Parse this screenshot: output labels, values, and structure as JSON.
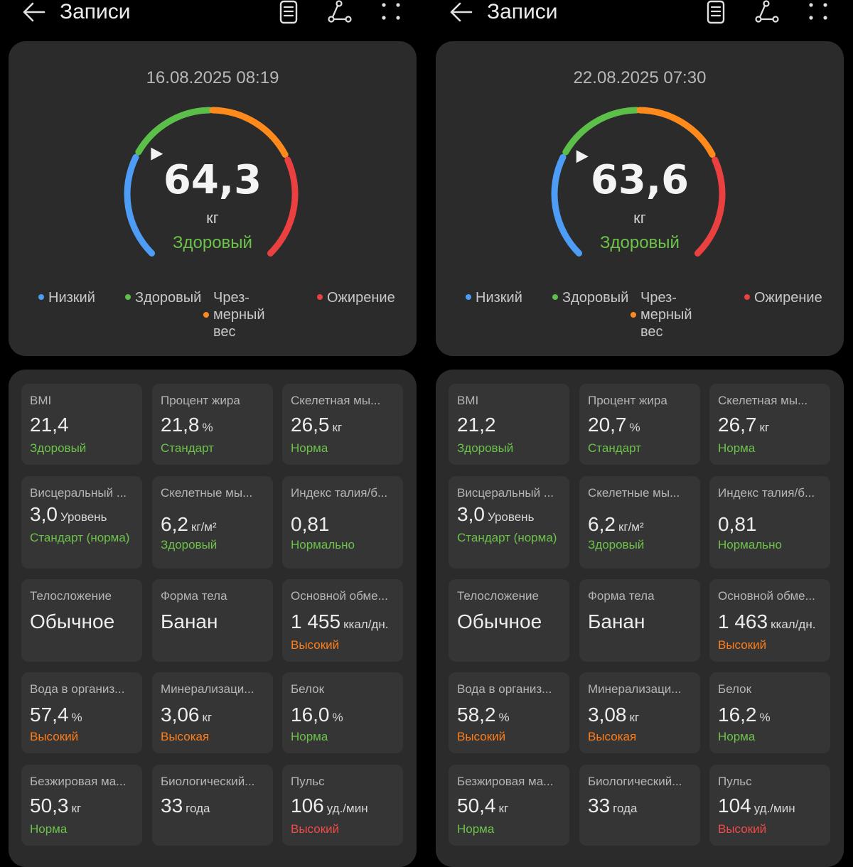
{
  "colors": {
    "low": "#4d9cf5",
    "healthy": "#5cbf4a",
    "overweight": "#ff8a1c",
    "obese": "#ea4040",
    "card_bg": "#2b2b2b",
    "tile_bg": "#353535"
  },
  "panels": [
    {
      "header": {
        "title": "Записи",
        "icons": [
          "back-arrow-icon",
          "notes-icon",
          "graph-icon",
          "more-icon"
        ]
      },
      "gauge": {
        "date": "16.08.2025 08:19",
        "value": "64,3",
        "unit": "кг",
        "status": "Здоровый",
        "marker_fraction": 0.3
      },
      "legend": {
        "low": "Низкий",
        "healthy": "Здоровый",
        "over_1": "Чрез-",
        "over_2": "мерный",
        "over_3": "вес",
        "obese": "Ожирение"
      },
      "metrics": [
        {
          "label": "BMI",
          "value": "21,4",
          "unit": "",
          "status": "Здоровый",
          "color": "green"
        },
        {
          "label": "Процент жира",
          "value": "21,8",
          "unit": "%",
          "status": "Стандарт",
          "color": "green"
        },
        {
          "label": "Скелетная мы...",
          "value": "26,5",
          "unit": "кг",
          "status": "Норма",
          "color": "green"
        },
        {
          "label": "Висцеральный ...",
          "value": "3,0",
          "unit": "Уровень",
          "status": "Стандарт (норма)",
          "color": "green"
        },
        {
          "label": "Скелетные мы...",
          "value": "6,2",
          "unit": "кг/м²",
          "status": "Здоровый",
          "color": "green"
        },
        {
          "label": "Индекс талия/б...",
          "value": "0,81",
          "unit": "",
          "status": "Нормально",
          "color": "green"
        },
        {
          "label": "Телосложение",
          "value": "Обычное",
          "unit": "",
          "status": "",
          "color": "green"
        },
        {
          "label": "Форма тела",
          "value": "Банан",
          "unit": "",
          "status": "",
          "color": "green"
        },
        {
          "label": "Основной обме...",
          "value": "1 455",
          "unit": "ккал/дн.",
          "status": "Высокий",
          "color": "orange"
        },
        {
          "label": "Вода в организ...",
          "value": "57,4",
          "unit": "%",
          "status": "Высокий",
          "color": "orange"
        },
        {
          "label": "Минерализаци...",
          "value": "3,06",
          "unit": "кг",
          "status": "Высокая",
          "color": "orange"
        },
        {
          "label": "Белок",
          "value": "16,0",
          "unit": "%",
          "status": "Норма",
          "color": "green"
        },
        {
          "label": "Безжировая ма...",
          "value": "50,3",
          "unit": "кг",
          "status": "Норма",
          "color": "green"
        },
        {
          "label": "Биологический...",
          "value": "33",
          "unit": "года",
          "status": "",
          "color": "green"
        },
        {
          "label": "Пульс",
          "value": "106",
          "unit": "уд./мин",
          "status": "Высокий",
          "color": "red"
        }
      ]
    },
    {
      "header": {
        "title": "Записи",
        "icons": [
          "back-arrow-icon",
          "notes-icon",
          "graph-icon",
          "more-icon"
        ]
      },
      "gauge": {
        "date": "22.08.2025 07:30",
        "value": "63,6",
        "unit": "кг",
        "status": "Здоровый",
        "marker_fraction": 0.29
      },
      "legend": {
        "low": "Низкий",
        "healthy": "Здоровый",
        "over_1": "Чрез-",
        "over_2": "мерный",
        "over_3": "вес",
        "obese": "Ожирение"
      },
      "metrics": [
        {
          "label": "BMI",
          "value": "21,2",
          "unit": "",
          "status": "Здоровый",
          "color": "green"
        },
        {
          "label": "Процент жира",
          "value": "20,7",
          "unit": "%",
          "status": "Стандарт",
          "color": "green"
        },
        {
          "label": "Скелетная мы...",
          "value": "26,7",
          "unit": "кг",
          "status": "Норма",
          "color": "green"
        },
        {
          "label": "Висцеральный ...",
          "value": "3,0",
          "unit": "Уровень",
          "status": "Стандарт (норма)",
          "color": "green"
        },
        {
          "label": "Скелетные мы...",
          "value": "6,2",
          "unit": "кг/м²",
          "status": "Здоровый",
          "color": "green"
        },
        {
          "label": "Индекс талия/б...",
          "value": "0,81",
          "unit": "",
          "status": "Нормально",
          "color": "green"
        },
        {
          "label": "Телосложение",
          "value": "Обычное",
          "unit": "",
          "status": "",
          "color": "green"
        },
        {
          "label": "Форма тела",
          "value": "Банан",
          "unit": "",
          "status": "",
          "color": "green"
        },
        {
          "label": "Основной обме...",
          "value": "1 463",
          "unit": "ккал/дн.",
          "status": "Высокий",
          "color": "orange"
        },
        {
          "label": "Вода в организ...",
          "value": "58,2",
          "unit": "%",
          "status": "Высокий",
          "color": "orange"
        },
        {
          "label": "Минерализаци...",
          "value": "3,08",
          "unit": "кг",
          "status": "Высокая",
          "color": "orange"
        },
        {
          "label": "Белок",
          "value": "16,2",
          "unit": "%",
          "status": "Норма",
          "color": "green"
        },
        {
          "label": "Безжировая ма...",
          "value": "50,4",
          "unit": "кг",
          "status": "Норма",
          "color": "green"
        },
        {
          "label": "Биологический...",
          "value": "33",
          "unit": "года",
          "status": "",
          "color": "green"
        },
        {
          "label": "Пульс",
          "value": "104",
          "unit": "уд./мин",
          "status": "Высокий",
          "color": "red"
        }
      ]
    }
  ]
}
